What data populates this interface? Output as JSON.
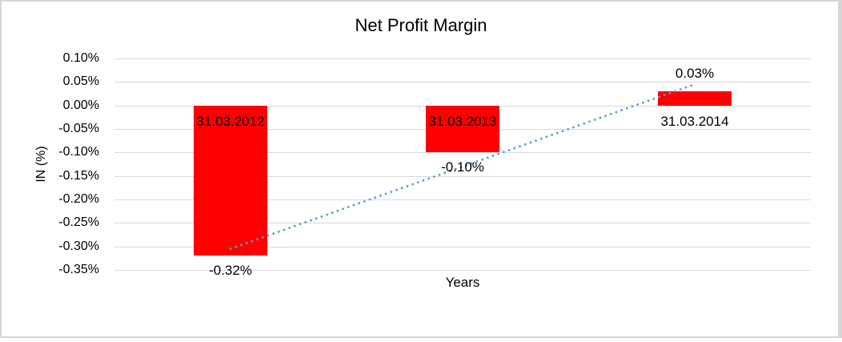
{
  "chart_data": {
    "type": "bar",
    "title": "Net Profit Margin",
    "xlabel": "Years",
    "ylabel": "IN (%)",
    "categories": [
      "31.03.2012",
      "31.03.2013",
      "31.03.2014"
    ],
    "values": [
      -0.32,
      -0.1,
      0.03
    ],
    "value_labels": [
      "-0.32%",
      "-0.10%",
      "0.03%"
    ],
    "yticks": [
      0.1,
      0.05,
      0.0,
      -0.05,
      -0.1,
      -0.15,
      -0.2,
      -0.25,
      -0.3,
      -0.35
    ],
    "ytick_labels": [
      "0.10%",
      "0.05%",
      "0.00%",
      "-0.05%",
      "-0.10%",
      "-0.15%",
      "-0.20%",
      "-0.25%",
      "-0.30%",
      "-0.35%"
    ],
    "ylim": [
      0.1,
      -0.35
    ],
    "grid": true,
    "legend": "none",
    "colors": {
      "bar": "#FF0000",
      "trendline": "#5B9BD5",
      "gridline": "#D9D9D9",
      "text": "#000000",
      "frame_border": "#D6D6D6"
    },
    "trendline": {
      "type": "linear",
      "style": "dotted",
      "start_value": -0.305,
      "end_value": 0.045
    }
  }
}
